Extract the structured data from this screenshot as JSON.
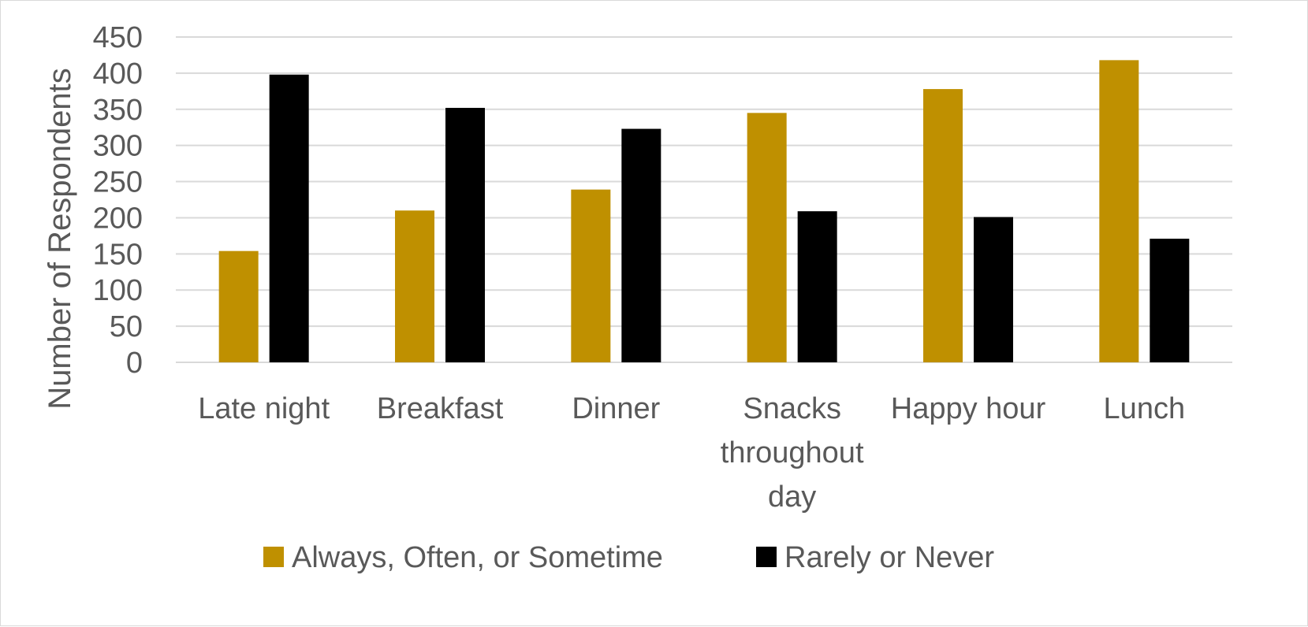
{
  "chart_data": {
    "type": "bar",
    "title": "",
    "xlabel": "",
    "ylabel": "Number of Respondents",
    "ylim": [
      0,
      450
    ],
    "yticks": [
      0,
      50,
      100,
      150,
      200,
      250,
      300,
      350,
      400,
      450
    ],
    "grid": true,
    "legend_position": "bottom",
    "categories": [
      [
        "Late night"
      ],
      [
        "Breakfast"
      ],
      [
        "Dinner"
      ],
      [
        "Snacks",
        "throughout",
        "day"
      ],
      [
        "Happy hour"
      ],
      [
        "Lunch"
      ]
    ],
    "series": [
      {
        "name": "Always, Often, or Sometime",
        "color": "#BF9000",
        "values": [
          154,
          210,
          239,
          345,
          378,
          418
        ]
      },
      {
        "name": "Rarely or Never",
        "color": "#000000",
        "values": [
          398,
          352,
          323,
          209,
          201,
          171
        ]
      }
    ]
  }
}
